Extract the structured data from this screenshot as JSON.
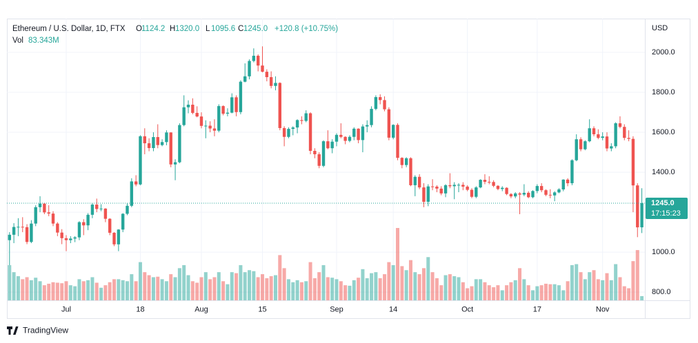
{
  "chart_data": {
    "type": "candlestick",
    "header": {
      "symbol": "Ethereum / U.S. Dollar, 1D, FTX",
      "ohlc_labels": [
        "O",
        "H",
        "L",
        "C"
      ],
      "ohlc_values": [
        "1124.2",
        "1320.0",
        "1095.6",
        "1245.0"
      ],
      "change": "+120.8 (+10.75%)",
      "volume_label": "Vol",
      "volume_value": "83.343M"
    },
    "currency": "USD",
    "last_price": {
      "value": 1245.0,
      "label": "1245.0"
    },
    "countdown": "17:15:23",
    "brand": "TradingView",
    "up_color": "#26a69a",
    "down_color": "#ef5350",
    "grid": true,
    "ylim": [
      759,
      2169
    ],
    "yticks": [
      {
        "value": 800,
        "label": "800.0"
      },
      {
        "value": 1000,
        "label": "1000.0"
      },
      {
        "value": 1200,
        "label": "1200.0"
      },
      {
        "value": 1400,
        "label": "1400.0"
      },
      {
        "value": 1600,
        "label": "1600.0"
      },
      {
        "value": 1800,
        "label": "1800.0"
      },
      {
        "value": 2000,
        "label": "2000.0"
      }
    ],
    "xlim": [
      -0.6,
      145.7
    ],
    "xticks": [
      {
        "value": 13,
        "label": "Jul"
      },
      {
        "value": 30,
        "label": "18"
      },
      {
        "value": 44,
        "label": "Aug"
      },
      {
        "value": 58,
        "label": "15"
      },
      {
        "value": 75,
        "label": "Sep"
      },
      {
        "value": 88,
        "label": "14"
      },
      {
        "value": 105,
        "label": "Oct"
      },
      {
        "value": 121,
        "label": "17"
      },
      {
        "value": 136,
        "label": "Nov"
      }
    ],
    "ohlc": [
      [
        1060,
        1100,
        935,
        1087
      ],
      [
        1087,
        1145,
        1045,
        1126
      ],
      [
        1126,
        1170,
        1080,
        1127
      ],
      [
        1127,
        1175,
        1100,
        1125
      ],
      [
        1125,
        1140,
        1040,
        1051
      ],
      [
        1051,
        1160,
        1045,
        1143
      ],
      [
        1143,
        1235,
        1130,
        1225
      ],
      [
        1225,
        1280,
        1200,
        1243
      ],
      [
        1243,
        1245,
        1190,
        1199
      ],
      [
        1199,
        1235,
        1180,
        1193
      ],
      [
        1193,
        1205,
        1130,
        1143
      ],
      [
        1143,
        1150,
        1080,
        1098
      ],
      [
        1098,
        1115,
        1040,
        1070
      ],
      [
        1070,
        1085,
        1005,
        1060
      ],
      [
        1060,
        1080,
        1045,
        1068
      ],
      [
        1068,
        1080,
        1050,
        1074
      ],
      [
        1074,
        1155,
        1060,
        1150
      ],
      [
        1150,
        1165,
        1085,
        1134
      ],
      [
        1134,
        1195,
        1110,
        1187
      ],
      [
        1187,
        1245,
        1170,
        1238
      ],
      [
        1238,
        1268,
        1200,
        1216
      ],
      [
        1216,
        1240,
        1205,
        1218
      ],
      [
        1218,
        1220,
        1150,
        1167
      ],
      [
        1167,
        1170,
        1085,
        1097
      ],
      [
        1097,
        1100,
        1030,
        1039
      ],
      [
        1039,
        1115,
        1005,
        1113
      ],
      [
        1113,
        1195,
        1100,
        1192
      ],
      [
        1192,
        1245,
        1185,
        1232
      ],
      [
        1232,
        1370,
        1225,
        1354
      ],
      [
        1354,
        1385,
        1330,
        1339
      ],
      [
        1339,
        1585,
        1335,
        1580
      ],
      [
        1580,
        1620,
        1490,
        1545
      ],
      [
        1545,
        1570,
        1505,
        1521
      ],
      [
        1521,
        1600,
        1505,
        1576
      ],
      [
        1576,
        1640,
        1520,
        1536
      ],
      [
        1536,
        1565,
        1530,
        1551
      ],
      [
        1551,
        1610,
        1535,
        1599
      ],
      [
        1599,
        1600,
        1425,
        1439
      ],
      [
        1439,
        1465,
        1360,
        1450
      ],
      [
        1450,
        1645,
        1445,
        1636
      ],
      [
        1636,
        1785,
        1630,
        1725
      ],
      [
        1725,
        1760,
        1695,
        1738
      ],
      [
        1738,
        1770,
        1690,
        1697
      ],
      [
        1697,
        1730,
        1675,
        1679
      ],
      [
        1679,
        1700,
        1620,
        1632
      ],
      [
        1632,
        1660,
        1570,
        1633
      ],
      [
        1633,
        1655,
        1600,
        1619
      ],
      [
        1619,
        1665,
        1580,
        1608
      ],
      [
        1608,
        1740,
        1600,
        1731
      ],
      [
        1731,
        1735,
        1685,
        1693
      ],
      [
        1693,
        1720,
        1680,
        1698
      ],
      [
        1698,
        1795,
        1695,
        1775
      ],
      [
        1775,
        1785,
        1680,
        1701
      ],
      [
        1701,
        1860,
        1690,
        1853
      ],
      [
        1853,
        1945,
        1850,
        1880
      ],
      [
        1880,
        1965,
        1865,
        1957
      ],
      [
        1957,
        2020,
        1950,
        1983
      ],
      [
        1983,
        1990,
        1905,
        1934
      ],
      [
        1934,
        2030,
        1900,
        1903
      ],
      [
        1903,
        1915,
        1855,
        1876
      ],
      [
        1876,
        1905,
        1820,
        1832
      ],
      [
        1832,
        1880,
        1810,
        1847
      ],
      [
        1847,
        1850,
        1610,
        1621
      ],
      [
        1621,
        1630,
        1530,
        1577
      ],
      [
        1577,
        1625,
        1570,
        1617
      ],
      [
        1617,
        1630,
        1585,
        1624
      ],
      [
        1624,
        1665,
        1595,
        1661
      ],
      [
        1661,
        1680,
        1640,
        1657
      ],
      [
        1657,
        1710,
        1650,
        1695
      ],
      [
        1695,
        1700,
        1490,
        1507
      ],
      [
        1507,
        1520,
        1470,
        1490
      ],
      [
        1490,
        1500,
        1420,
        1432
      ],
      [
        1432,
        1560,
        1425,
        1555
      ],
      [
        1555,
        1610,
        1515,
        1520
      ],
      [
        1520,
        1565,
        1495,
        1553
      ],
      [
        1553,
        1595,
        1530,
        1587
      ],
      [
        1587,
        1645,
        1570,
        1577
      ],
      [
        1577,
        1580,
        1540,
        1557
      ],
      [
        1557,
        1585,
        1550,
        1577
      ],
      [
        1577,
        1625,
        1560,
        1618
      ],
      [
        1618,
        1620,
        1545,
        1561
      ],
      [
        1561,
        1640,
        1500,
        1629
      ],
      [
        1629,
        1660,
        1600,
        1636
      ],
      [
        1636,
        1730,
        1625,
        1717
      ],
      [
        1717,
        1785,
        1710,
        1776
      ],
      [
        1776,
        1790,
        1740,
        1761
      ],
      [
        1761,
        1780,
        1705,
        1715
      ],
      [
        1715,
        1725,
        1560,
        1573
      ],
      [
        1573,
        1640,
        1565,
        1637
      ],
      [
        1637,
        1645,
        1460,
        1472
      ],
      [
        1472,
        1475,
        1420,
        1436
      ],
      [
        1436,
        1475,
        1425,
        1470
      ],
      [
        1470,
        1475,
        1330,
        1335
      ],
      [
        1335,
        1385,
        1280,
        1377
      ],
      [
        1377,
        1390,
        1315,
        1324
      ],
      [
        1324,
        1345,
        1225,
        1252
      ],
      [
        1252,
        1340,
        1230,
        1329
      ],
      [
        1329,
        1365,
        1310,
        1328
      ],
      [
        1328,
        1335,
        1300,
        1318
      ],
      [
        1318,
        1330,
        1285,
        1294
      ],
      [
        1294,
        1340,
        1275,
        1335
      ],
      [
        1335,
        1395,
        1320,
        1330
      ],
      [
        1330,
        1350,
        1265,
        1337
      ],
      [
        1337,
        1345,
        1300,
        1337
      ],
      [
        1337,
        1350,
        1310,
        1328
      ],
      [
        1328,
        1335,
        1305,
        1312
      ],
      [
        1312,
        1320,
        1270,
        1277
      ],
      [
        1277,
        1330,
        1270,
        1324
      ],
      [
        1324,
        1365,
        1320,
        1362
      ],
      [
        1362,
        1390,
        1340,
        1352
      ],
      [
        1352,
        1380,
        1340,
        1351
      ],
      [
        1351,
        1360,
        1325,
        1332
      ],
      [
        1332,
        1335,
        1310,
        1316
      ],
      [
        1316,
        1330,
        1305,
        1322
      ],
      [
        1322,
        1325,
        1285,
        1291
      ],
      [
        1291,
        1295,
        1270,
        1279
      ],
      [
        1279,
        1300,
        1270,
        1294
      ],
      [
        1294,
        1300,
        1190,
        1288
      ],
      [
        1288,
        1340,
        1280,
        1297
      ],
      [
        1297,
        1305,
        1270,
        1275
      ],
      [
        1275,
        1310,
        1270,
        1306
      ],
      [
        1306,
        1340,
        1295,
        1331
      ],
      [
        1331,
        1345,
        1300,
        1310
      ],
      [
        1310,
        1315,
        1280,
        1287
      ],
      [
        1287,
        1315,
        1270,
        1284
      ],
      [
        1284,
        1305,
        1255,
        1299
      ],
      [
        1299,
        1320,
        1295,
        1314
      ],
      [
        1314,
        1365,
        1305,
        1363
      ],
      [
        1363,
        1370,
        1330,
        1345
      ],
      [
        1345,
        1465,
        1335,
        1460
      ],
      [
        1460,
        1590,
        1455,
        1565
      ],
      [
        1565,
        1575,
        1505,
        1515
      ],
      [
        1515,
        1560,
        1510,
        1555
      ],
      [
        1555,
        1665,
        1550,
        1620
      ],
      [
        1620,
        1630,
        1580,
        1590
      ],
      [
        1590,
        1615,
        1565,
        1572
      ],
      [
        1572,
        1600,
        1560,
        1579
      ],
      [
        1579,
        1600,
        1505,
        1519
      ],
      [
        1519,
        1545,
        1505,
        1530
      ],
      [
        1530,
        1650,
        1520,
        1645
      ],
      [
        1645,
        1680,
        1620,
        1627
      ],
      [
        1627,
        1640,
        1560,
        1572
      ],
      [
        1572,
        1610,
        1555,
        1567
      ],
      [
        1567,
        1580,
        1200,
        1334
      ],
      [
        1334,
        1345,
        1075,
        1124.2
      ],
      [
        1124.2,
        1320.0,
        1095.6,
        1245.0
      ]
    ],
    "volume": [
      700,
      560,
      480,
      420,
      460,
      400,
      450,
      380,
      300,
      330,
      360,
      350,
      340,
      380,
      300,
      280,
      420,
      380,
      400,
      460,
      350,
      250,
      300,
      360,
      420,
      420,
      400,
      380,
      520,
      380,
      760,
      560,
      500,
      460,
      470,
      420,
      380,
      520,
      460,
      640,
      700,
      500,
      380,
      350,
      460,
      560,
      420,
      460,
      560,
      380,
      320,
      560,
      540,
      700,
      560,
      600,
      580,
      460,
      520,
      440,
      480,
      500,
      900,
      640,
      420,
      360,
      400,
      360,
      380,
      760,
      440,
      560,
      700,
      460,
      450,
      420,
      380,
      300,
      290,
      400,
      450,
      620,
      440,
      540,
      560,
      440,
      520,
      760,
      700,
      1440,
      680,
      600,
      800,
      560,
      520,
      640,
      860,
      560,
      440,
      300,
      500,
      520,
      480,
      460,
      360,
      240,
      280,
      420,
      420,
      360,
      300,
      260,
      300,
      200,
      300,
      360,
      400,
      640,
      420,
      300,
      200,
      280,
      300,
      330,
      320,
      320,
      300,
      200,
      380,
      700,
      720,
      560,
      420,
      560,
      600,
      420,
      400,
      540,
      400,
      720,
      460,
      280,
      240,
      780,
      1000,
      83.343
    ]
  }
}
